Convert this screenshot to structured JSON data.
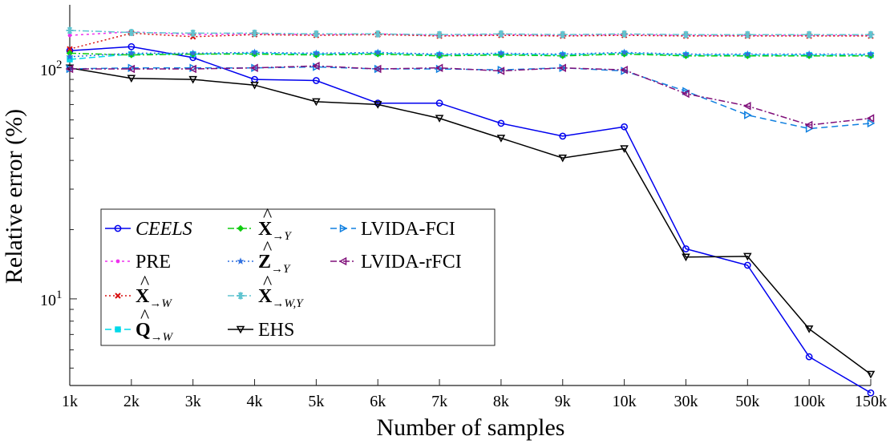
{
  "chart_data": {
    "type": "line",
    "title": "",
    "xlabel": "Number of samples",
    "ylabel": "Relative error (%)",
    "yscale": "log",
    "ylim": [
      4.2,
      190
    ],
    "y_ticks": [
      {
        "value": 10,
        "base": "10",
        "exp": "1"
      },
      {
        "value": 100,
        "base": "10",
        "exp": "2"
      }
    ],
    "categories": [
      "1k",
      "2k",
      "3k",
      "4k",
      "5k",
      "6k",
      "7k",
      "8k",
      "9k",
      "10k",
      "30k",
      "50k",
      "100k",
      "150k"
    ],
    "grid": false,
    "legend": "lower-left, 3 columns",
    "series": [
      {
        "name": "CEELS",
        "italic": true,
        "color": "#0000ee",
        "dash": "",
        "marker": "circle",
        "values": [
          120,
          125,
          112,
          90,
          89,
          71,
          71,
          58,
          51,
          56,
          16.5,
          14,
          5.6,
          3.9
        ]
      },
      {
        "name": "PRE",
        "color": "#ee30ee",
        "dash": "3 4",
        "marker": "dot",
        "values": [
          140,
          145,
          141,
          142,
          141,
          142,
          140,
          141,
          140,
          141,
          140,
          140,
          140,
          140
        ]
      },
      {
        "name": "X→W",
        "color": "#d81010",
        "dash": "2 3",
        "marker": "x",
        "values": [
          122,
          143,
          138,
          141,
          140,
          141,
          139,
          140,
          139,
          140,
          139,
          139,
          139,
          139
        ]
      },
      {
        "name": "Q→W",
        "color": "#00d8e8",
        "dash": "8 4",
        "marker": "square",
        "values": [
          110,
          116,
          116,
          117,
          116,
          117,
          115,
          116,
          115,
          117,
          115,
          115,
          115,
          115
        ]
      },
      {
        "name": "X→Y",
        "color": "#10cc10",
        "dash": "8 3 2 3",
        "marker": "diamond",
        "values": [
          117,
          115,
          116,
          116,
          115,
          116,
          114,
          115,
          114,
          116,
          114,
          114,
          114,
          114
        ]
      },
      {
        "name": "Z→Y",
        "color": "#3070e0",
        "dash": "2 3",
        "marker": "star",
        "values": [
          113,
          117,
          117,
          118,
          117,
          118,
          116,
          117,
          116,
          118,
          116,
          116,
          116,
          116
        ]
      },
      {
        "name": "X→W,Y",
        "color": "#60c4d0",
        "dash": "8 3 2 3",
        "marker": "asterisk",
        "values": [
          147,
          144,
          143,
          143,
          142,
          142,
          141,
          142,
          141,
          142,
          141,
          141,
          141,
          141
        ]
      },
      {
        "name": "EHS",
        "color": "#000000",
        "dash": "",
        "marker": "tri-down",
        "values": [
          101,
          91,
          90,
          85,
          72,
          70,
          61,
          50,
          41,
          45,
          15.2,
          15.3,
          7.4,
          4.7
        ]
      },
      {
        "name": "LVIDA-FCI",
        "color": "#1080e0",
        "dash": "8 5",
        "marker": "tri-right",
        "values": [
          100,
          101,
          101,
          101,
          102,
          100,
          100,
          99,
          101,
          98,
          80,
          63,
          55,
          58
        ]
      },
      {
        "name": "LVIDA-rFCI",
        "color": "#80107a",
        "dash": "8 3 2 3",
        "marker": "tri-left",
        "values": [
          100,
          100,
          100,
          101,
          103,
          100,
          101,
          98,
          101,
          99,
          78,
          69,
          57,
          61
        ]
      }
    ]
  }
}
